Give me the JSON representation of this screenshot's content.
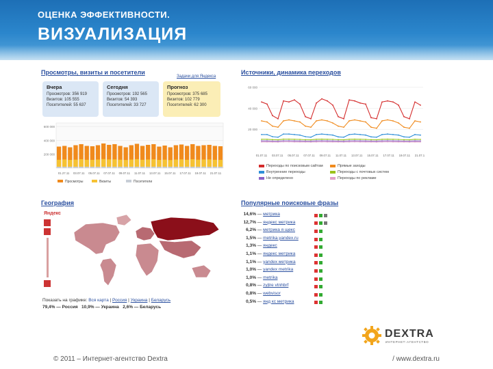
{
  "header": {
    "subtitle": "ОЦЕНКА ЭФФЕКТИВНОСТИ.",
    "title": "ВИЗУАЛИЗАЦИЯ"
  },
  "visits_panel": {
    "title": "Просмотры, визиты и посетители",
    "yandex_link": "Задачи для Яндекса",
    "yesterday": {
      "title": "Вчера",
      "views": "Просмотров: 356 919",
      "visits": "Визитов: 105 555",
      "visitors": "Посетителей: 55 637"
    },
    "today": {
      "title": "Сегодня",
      "views": "Просмотров: 192 565",
      "visits": "Визитов: 54 393",
      "visitors": "Посетителей: 33 727"
    },
    "forecast": {
      "title": "Прогноз",
      "views": "Просмотров: 375 685",
      "visits": "Визитов: 102 779",
      "visitors": "Посетителей: 62 300"
    },
    "legend": [
      "Просмотры",
      "Визиты",
      "Посетители"
    ]
  },
  "chart_data": [
    {
      "type": "bar",
      "title": "Просмотры, визиты и посетители",
      "yticks": [
        "600 000",
        "400 000",
        "200 000"
      ],
      "ylim": [
        0,
        650000
      ],
      "xticks": [
        "01.27.11",
        "03.07.11",
        "05.07.11",
        "07.07.11",
        "09.07.11",
        "11.07.11",
        "13.07.11",
        "15.07.11",
        "17.07.11",
        "19.07.11",
        "21.07.11"
      ],
      "series": [
        {
          "name": "Просмотры",
          "color": "#f08a1c",
          "values": [
            310000,
            320000,
            300000,
            330000,
            345000,
            320000,
            315000,
            330000,
            355000,
            335000,
            345000,
            320000,
            300000,
            330000,
            350000,
            320000,
            335000,
            345000,
            310000,
            325000,
            300000,
            330000,
            340000,
            320000,
            345000,
            320000,
            330000,
            335000,
            320000,
            315000
          ]
        },
        {
          "name": "Визиты",
          "color": "#f6c232",
          "values": [
            120000,
            125000,
            118000,
            122000,
            128000,
            120000,
            119000,
            124000,
            130000,
            125000,
            126000,
            121000,
            117000,
            123000,
            129000,
            120000,
            124000,
            127000,
            118000,
            122000,
            116000,
            123000,
            126000,
            120000,
            128000,
            121000,
            124000,
            125000,
            120000,
            119000
          ]
        },
        {
          "name": "Посетители",
          "color": "#c7cdd6",
          "values": [
            20000,
            20000,
            20000,
            20000,
            20000,
            20000,
            20000,
            20000,
            20000,
            20000,
            20000,
            20000,
            20000,
            20000,
            20000,
            20000,
            20000,
            20000,
            20000,
            20000,
            20000,
            20000,
            20000,
            20000,
            20000,
            20000,
            20000,
            20000,
            20000,
            20000
          ]
        }
      ]
    },
    {
      "type": "line",
      "title": "Источники, динамика переходов",
      "yticks": [
        "60 000",
        "40 000",
        "20 000"
      ],
      "ylim": [
        0,
        65000
      ],
      "xticks": [
        "01.07.11",
        "03.07.11",
        "05.07.11",
        "07.07.11",
        "09.07.11",
        "11.07.11",
        "13.07.11",
        "15.07.11",
        "17.07.11",
        "19.07.11",
        "21.07.11"
      ],
      "series": [
        {
          "name": "Переходы по поисковым системам",
          "color": "#d42b2b",
          "values": [
            46000,
            44000,
            33000,
            30000,
            47000,
            46000,
            48000,
            44000,
            32000,
            30000,
            45000,
            49000,
            47000,
            43000,
            32000,
            30000,
            48000,
            47000,
            45000,
            44000,
            31000,
            30000,
            46000,
            47000,
            46000,
            43000,
            32000,
            30000,
            46000,
            43000
          ]
        },
        {
          "name": "Прямые заходы",
          "color": "#f08a1c",
          "values": [
            28000,
            27000,
            23000,
            22000,
            28000,
            29000,
            28000,
            27000,
            23000,
            22000,
            28000,
            29000,
            28000,
            26000,
            23000,
            22000,
            28000,
            29000,
            28000,
            27000,
            22000,
            21000,
            28000,
            29000,
            28000,
            26000,
            22000,
            21000,
            28000,
            27000
          ]
        },
        {
          "name": "Внутренние переходы",
          "color": "#2f8fd8",
          "values": [
            15000,
            15000,
            13000,
            12500,
            15500,
            15500,
            15000,
            14500,
            13000,
            12500,
            15000,
            15500,
            15000,
            14500,
            12800,
            12500,
            15000,
            15500,
            15000,
            14500,
            12800,
            12500,
            15000,
            15500,
            15000,
            14500,
            12800,
            12500,
            15000,
            14500
          ]
        },
        {
          "name": "Переходы с почтовых систем",
          "color": "#9bc21b",
          "values": [
            10500,
            10500,
            10200,
            10000,
            10600,
            10600,
            10500,
            10400,
            10100,
            10000,
            10500,
            10600,
            10500,
            10400,
            10100,
            10000,
            10500,
            10600,
            10500,
            10400,
            10100,
            10000,
            10500,
            10600,
            10500,
            10400,
            10100,
            10000,
            10500,
            10400
          ]
        },
        {
          "name": "Не определено",
          "color": "#8a63c7",
          "values": [
            9000,
            9000,
            8800,
            8700,
            9100,
            9100,
            9000,
            8900,
            8800,
            8700,
            9000,
            9100,
            9000,
            8900,
            8800,
            8700,
            9000,
            9100,
            9000,
            8900,
            8800,
            8700,
            9000,
            9100,
            9000,
            8900,
            8800,
            8700,
            9000,
            8900
          ]
        },
        {
          "name": "Переходы по рекламе",
          "color": "#e0a0c8",
          "values": [
            8000,
            8000,
            7900,
            7800,
            8100,
            8100,
            8000,
            7950,
            7900,
            7800,
            8000,
            8100,
            8000,
            7950,
            7900,
            7800,
            8000,
            8100,
            8000,
            7950,
            7900,
            7800,
            8000,
            8100,
            8000,
            7950,
            7900,
            7800,
            8000,
            7950
          ]
        }
      ]
    }
  ],
  "sources_panel": {
    "title": "Источники, динамика переходов",
    "legend": [
      {
        "label": "Переходы по поисковым сайтам",
        "color": "#d42b2b"
      },
      {
        "label": "Прямые заходы",
        "color": "#f08a1c"
      },
      {
        "label": "Внутренние переходы",
        "color": "#2f8fd8"
      },
      {
        "label": "Переходы с почтовых систем",
        "color": "#9bc21b"
      },
      {
        "label": "Не определено",
        "color": "#8a63c7"
      },
      {
        "label": "Переходы по рекламе",
        "color": "#e0a0c8"
      }
    ]
  },
  "geo_panel": {
    "title": "География",
    "yandex_label": "Яндекс",
    "show_on_chart": "Показать на графике:",
    "map_links": [
      "Вся карта",
      "Россия",
      "Украина",
      "Беларусь"
    ],
    "stats": [
      "79,4% — Россия",
      "10,9% — Украина",
      "2,6% — Беларусь"
    ]
  },
  "phrases_panel": {
    "title": "Популярные поисковые фразы",
    "rows": [
      {
        "pct": "14,6%",
        "phrase": "метрика"
      },
      {
        "pct": "12,7%",
        "phrase": "яндекс метрика"
      },
      {
        "pct": "6,2%",
        "phrase": "метрика я щекс"
      },
      {
        "pct": "1,5%",
        "phrase": "metrika.yandex.ru"
      },
      {
        "pct": "1,3%",
        "phrase": "яндекс"
      },
      {
        "pct": "1,1%",
        "phrase": "яндекс метрика"
      },
      {
        "pct": "1,1%",
        "phrase": "yandex метрика"
      },
      {
        "pct": "1,0%",
        "phrase": "yandex metrika"
      },
      {
        "pct": "1,0%",
        "phrase": "metrika"
      },
      {
        "pct": "0,8%",
        "phrase": "zyjtre vtnhbrf"
      },
      {
        "pct": "0,8%",
        "phrase": "webvisor"
      },
      {
        "pct": "0,5%",
        "phrase": "янд кс метрика"
      }
    ]
  },
  "footer": {
    "copyright": "© 2011 – Интернет-агентство Dextra",
    "page": "/ www.dextra.ru",
    "logo": "DEXTRA",
    "logo_tagline": "ИНТЕРНЕТ-АГЕНТСТВО"
  },
  "colors": {
    "accent_blue": "#1d6fb6",
    "map_dark": "#8b0f1a",
    "map_light": "#c98a90"
  }
}
